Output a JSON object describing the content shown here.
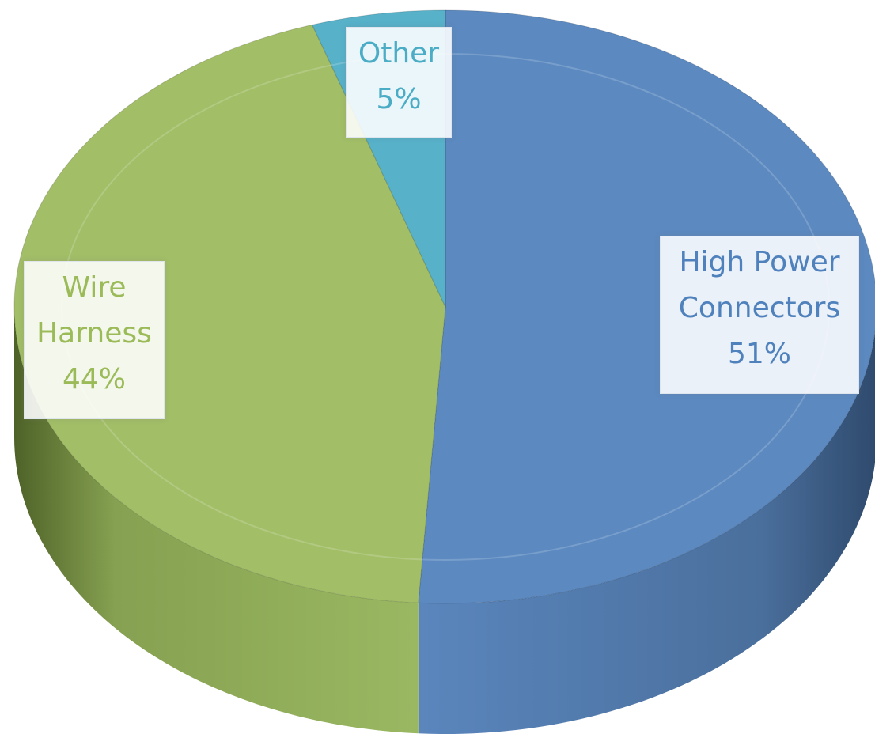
{
  "chart_data": {
    "type": "pie",
    "style": "3d",
    "slices": [
      {
        "label": "High Power Connectors",
        "value": 51,
        "display_pct": "51%",
        "color": "#5b89c0"
      },
      {
        "label": "Wire Harness",
        "value": 44,
        "display_pct": "44%",
        "color": "#a2be67"
      },
      {
        "label": "Other",
        "value": 5,
        "display_pct": "5%",
        "color": "#56b1c9"
      }
    ]
  },
  "labels": {
    "high_power": {
      "line1": "High Power",
      "line2": "Connectors",
      "line3": "51%"
    },
    "wire_harness": {
      "line1": "Wire",
      "line2": "Harness",
      "line3": "44%"
    },
    "other": {
      "line1": "Other",
      "line2": "5%"
    }
  },
  "colors": {
    "high_power_side": "#4a6f9c",
    "wire_harness_side": "#86a151",
    "other_side": "#3f93ab",
    "label_blue_text": "#4f81bd",
    "label_green_text": "#9bbb59",
    "label_teal_text": "#4bacc6"
  }
}
